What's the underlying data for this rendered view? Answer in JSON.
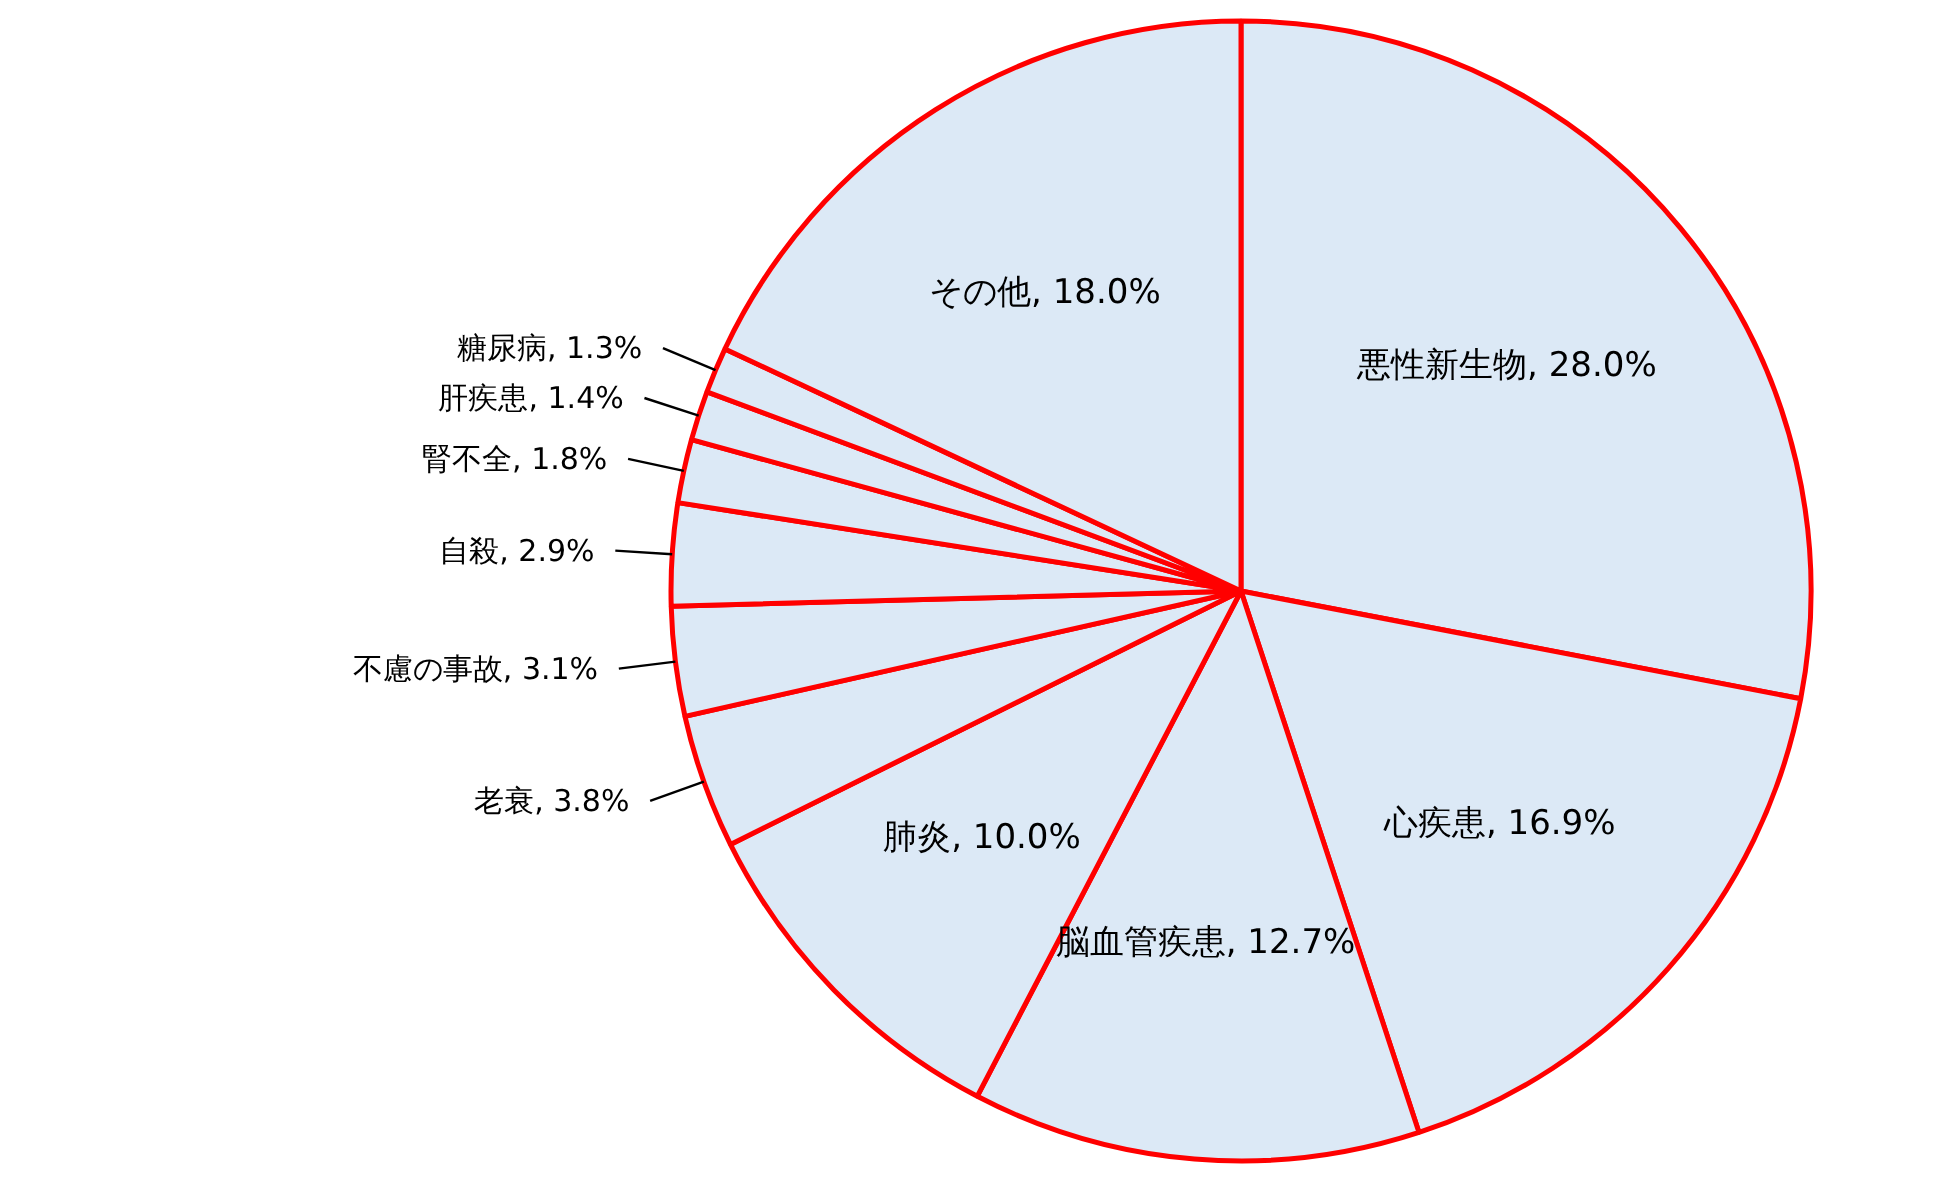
{
  "chart_data": {
    "type": "pie",
    "categories": [
      "悪性新生物",
      "心疾患",
      "脳血管疾患",
      "肺炎",
      "老衰",
      "不慮の事故",
      "自殺",
      "腎不全",
      "肝疾患",
      "糖尿病",
      "その他"
    ],
    "values": [
      28.0,
      16.9,
      12.7,
      10.0,
      3.8,
      3.1,
      2.9,
      1.8,
      1.4,
      1.3,
      18.0
    ],
    "value_labels": [
      ", 28.0%",
      ", 16.9%",
      ", 12.7%",
      ", 10.0%",
      ", 3.8%",
      ", 3.1%",
      ", 2.9%",
      ", 1.8%",
      ", 1.4%",
      ", 1.3%",
      ", 18.0%"
    ],
    "colors": [
      "#dce9f6",
      "#dce9f6",
      "#dce9f6",
      "#dce9f6",
      "#dce9f6",
      "#dce9f6",
      "#dce9f6",
      "#dce9f6",
      "#dce9f6",
      "#dce9f6",
      "#dce9f6"
    ]
  }
}
